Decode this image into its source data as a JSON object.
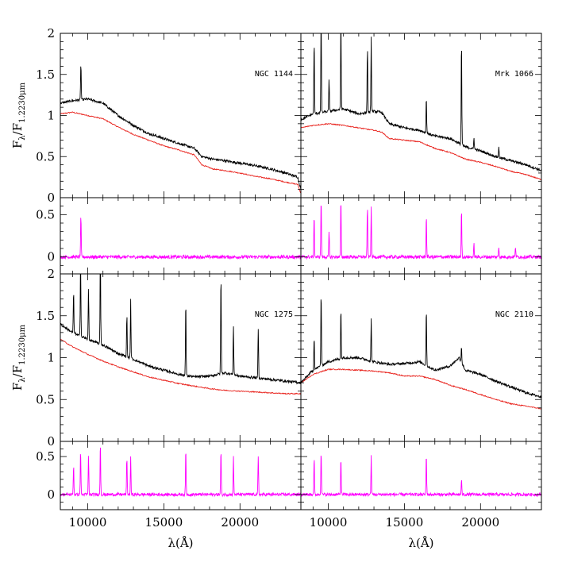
{
  "chart_data": {
    "type": "line",
    "layout": "2x2 grid of spectra, each with an upper flux panel and a lower residual panel",
    "x_axis": {
      "label": "λ(Å)",
      "range": [
        8200,
        24000
      ],
      "ticks": [
        10000,
        15000,
        20000
      ]
    },
    "upper_y_axis": {
      "label_main": "F",
      "label_sub1": "λ",
      "label_mid": "/F",
      "label_sub2": "1.2230μm",
      "range": [
        0,
        2
      ],
      "ticks": [
        "0",
        "0.5",
        "1",
        "1.5",
        "2"
      ]
    },
    "lower_y_axis": {
      "range": [
        -0.2,
        0.7
      ],
      "ticks": [
        "0",
        "0.5"
      ]
    },
    "colors": {
      "observed": "#000000",
      "model": "#e8201a",
      "residual": "#ff00ff"
    },
    "panels": [
      {
        "object": "NGC 1144",
        "observed": {
          "x": [
            8200,
            9000,
            10000,
            11000,
            12000,
            13000,
            14000,
            15000,
            16000,
            17000,
            17500,
            18200,
            19000,
            20000,
            21000,
            22000,
            23000,
            23800,
            24000
          ],
          "y": [
            1.15,
            1.18,
            1.2,
            1.15,
            1.0,
            0.88,
            0.78,
            0.72,
            0.66,
            0.6,
            0.5,
            0.47,
            0.45,
            0.42,
            0.39,
            0.35,
            0.3,
            0.25,
            0.1
          ]
        },
        "model": {
          "x": [
            8200,
            9000,
            10000,
            11000,
            12000,
            13000,
            14000,
            15000,
            16000,
            17000,
            17500,
            18200,
            19000,
            20000,
            21000,
            22000,
            23000,
            23800,
            24000
          ],
          "y": [
            1.02,
            1.04,
            1.0,
            0.96,
            0.86,
            0.77,
            0.7,
            0.63,
            0.58,
            0.52,
            0.4,
            0.35,
            0.33,
            0.3,
            0.26,
            0.23,
            0.19,
            0.16,
            0.05
          ]
        },
        "emission_lines": [
          {
            "x": 9550,
            "h": 0.45
          }
        ],
        "residual_spikes": [
          {
            "x": 9550,
            "h": 0.48
          }
        ]
      },
      {
        "object": "Mrk 1066",
        "observed": {
          "x": [
            8200,
            9000,
            10000,
            11000,
            12000,
            13000,
            13500,
            14000,
            15000,
            16000,
            17000,
            18000,
            19000,
            20000,
            21000,
            22000,
            23000,
            24000
          ],
          "y": [
            0.95,
            1.02,
            1.05,
            1.08,
            1.02,
            1.05,
            1.04,
            0.9,
            0.85,
            0.82,
            0.75,
            0.72,
            0.62,
            0.57,
            0.5,
            0.45,
            0.4,
            0.33
          ]
        },
        "model": {
          "x": [
            8200,
            9000,
            10000,
            11000,
            12000,
            13000,
            13500,
            14000,
            15000,
            16000,
            17000,
            18000,
            19000,
            20000,
            21000,
            22000,
            23000,
            24000
          ],
          "y": [
            0.85,
            0.88,
            0.9,
            0.88,
            0.85,
            0.82,
            0.8,
            0.72,
            0.7,
            0.68,
            0.6,
            0.55,
            0.47,
            0.43,
            0.38,
            0.32,
            0.28,
            0.22
          ]
        },
        "emission_lines": [
          {
            "x": 9070,
            "h": 0.9
          },
          {
            "x": 9530,
            "h": 1.2
          },
          {
            "x": 10050,
            "h": 0.4
          },
          {
            "x": 10830,
            "h": 1.1
          },
          {
            "x": 12570,
            "h": 0.8
          },
          {
            "x": 12820,
            "h": 0.9
          },
          {
            "x": 16440,
            "h": 0.45
          },
          {
            "x": 18750,
            "h": 1.3
          },
          {
            "x": 19570,
            "h": 0.15
          },
          {
            "x": 21200,
            "h": 0.12
          }
        ],
        "residual_spikes": [
          {
            "x": 9070,
            "h": 0.5
          },
          {
            "x": 9530,
            "h": 0.7
          },
          {
            "x": 10050,
            "h": 0.3
          },
          {
            "x": 10830,
            "h": 0.7
          },
          {
            "x": 12570,
            "h": 0.6
          },
          {
            "x": 12820,
            "h": 0.6
          },
          {
            "x": 16440,
            "h": 0.5
          },
          {
            "x": 18750,
            "h": 0.6
          },
          {
            "x": 19570,
            "h": 0.15
          },
          {
            "x": 21200,
            "h": 0.12
          },
          {
            "x": 22300,
            "h": 0.12
          }
        ]
      },
      {
        "object": "NGC 1275",
        "observed": {
          "x": [
            8200,
            9000,
            10000,
            11000,
            12000,
            13000,
            14000,
            15000,
            16000,
            17000,
            18000,
            19000,
            20000,
            21000,
            22000,
            23000,
            24000
          ],
          "y": [
            1.4,
            1.3,
            1.22,
            1.15,
            1.05,
            0.98,
            0.9,
            0.85,
            0.8,
            0.77,
            0.78,
            0.82,
            0.78,
            0.76,
            0.74,
            0.72,
            0.7
          ]
        },
        "model": {
          "x": [
            8200,
            9000,
            10000,
            11000,
            12000,
            13000,
            14000,
            15000,
            16000,
            17000,
            18000,
            19000,
            20000,
            21000,
            22000,
            23000,
            24000
          ],
          "y": [
            1.22,
            1.13,
            1.04,
            0.96,
            0.89,
            0.83,
            0.77,
            0.73,
            0.69,
            0.66,
            0.63,
            0.61,
            0.6,
            0.59,
            0.58,
            0.57,
            0.57
          ]
        },
        "emission_lines": [
          {
            "x": 9070,
            "h": 0.5
          },
          {
            "x": 9530,
            "h": 0.9
          },
          {
            "x": 10050,
            "h": 0.6
          },
          {
            "x": 10830,
            "h": 1.2
          },
          {
            "x": 12570,
            "h": 0.5
          },
          {
            "x": 12820,
            "h": 0.7
          },
          {
            "x": 16440,
            "h": 0.9
          },
          {
            "x": 18750,
            "h": 1.2
          },
          {
            "x": 19570,
            "h": 0.6
          },
          {
            "x": 21200,
            "h": 0.6
          }
        ],
        "residual_spikes": [
          {
            "x": 9070,
            "h": 0.4
          },
          {
            "x": 9530,
            "h": 0.6
          },
          {
            "x": 10050,
            "h": 0.5
          },
          {
            "x": 10830,
            "h": 0.7
          },
          {
            "x": 12570,
            "h": 0.5
          },
          {
            "x": 12820,
            "h": 0.5
          },
          {
            "x": 16440,
            "h": 0.6
          },
          {
            "x": 18750,
            "h": 0.6
          },
          {
            "x": 19570,
            "h": 0.5
          },
          {
            "x": 21200,
            "h": 0.5
          }
        ]
      },
      {
        "object": "NGC 2110",
        "observed": {
          "x": [
            8200,
            9000,
            10000,
            11000,
            12000,
            13000,
            14000,
            15000,
            16000,
            17000,
            18000,
            18600,
            19000,
            20000,
            21000,
            22000,
            23000,
            24000
          ],
          "y": [
            0.7,
            0.85,
            0.95,
            1.0,
            1.0,
            0.95,
            0.92,
            0.93,
            0.95,
            0.85,
            0.9,
            1.0,
            0.85,
            0.8,
            0.72,
            0.65,
            0.58,
            0.53
          ]
        },
        "model": {
          "x": [
            8200,
            9000,
            10000,
            11000,
            12000,
            13000,
            14000,
            15000,
            16000,
            17000,
            18000,
            19000,
            20000,
            21000,
            22000,
            23000,
            24000
          ],
          "y": [
            0.7,
            0.8,
            0.86,
            0.86,
            0.85,
            0.84,
            0.82,
            0.78,
            0.78,
            0.74,
            0.67,
            0.62,
            0.56,
            0.5,
            0.45,
            0.42,
            0.39
          ]
        },
        "emission_lines": [
          {
            "x": 9070,
            "h": 0.4
          },
          {
            "x": 9530,
            "h": 0.9
          },
          {
            "x": 10830,
            "h": 0.6
          },
          {
            "x": 12820,
            "h": 0.5
          },
          {
            "x": 16440,
            "h": 0.7
          },
          {
            "x": 18750,
            "h": 0.2
          }
        ],
        "residual_spikes": [
          {
            "x": 9070,
            "h": 0.5
          },
          {
            "x": 9530,
            "h": 0.6
          },
          {
            "x": 10830,
            "h": 0.5
          },
          {
            "x": 12820,
            "h": 0.5
          },
          {
            "x": 16440,
            "h": 0.55
          },
          {
            "x": 18750,
            "h": 0.2
          }
        ]
      }
    ]
  }
}
